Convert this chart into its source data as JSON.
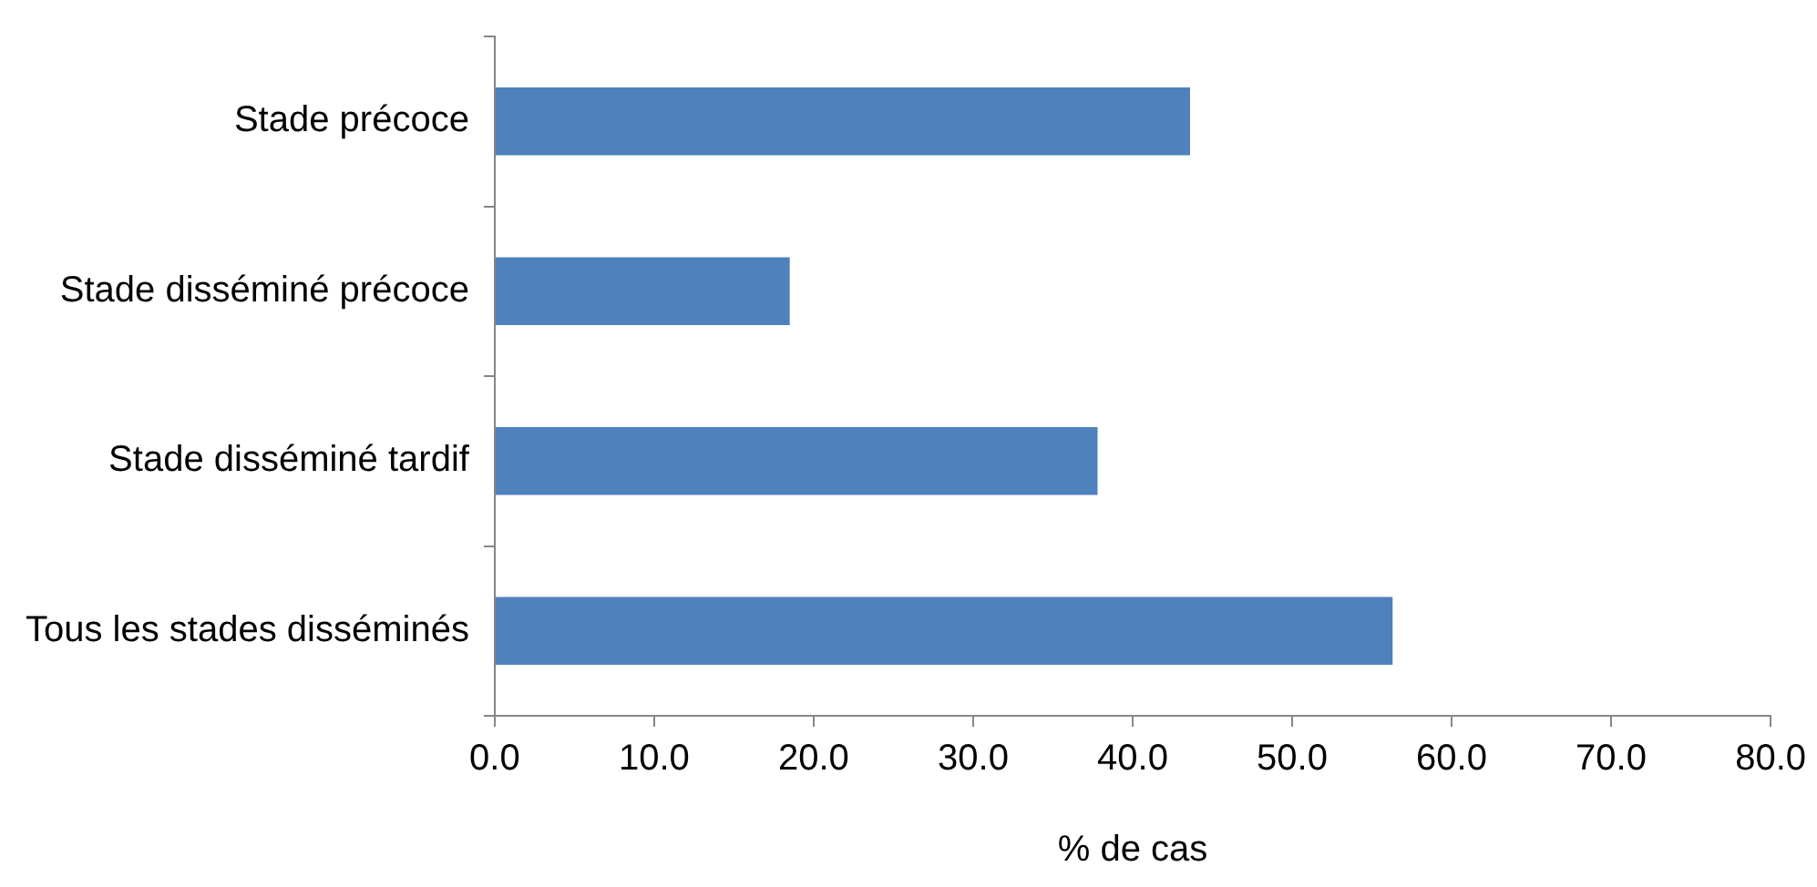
{
  "chart_data": {
    "type": "bar",
    "orientation": "horizontal",
    "xlabel": "% de cas",
    "categories": [
      "Stade précoce",
      "Stade disséminé précoce",
      "Stade disséminé tardif",
      "Tous les stades disséminés"
    ],
    "values": [
      43.6,
      18.5,
      37.8,
      56.3
    ],
    "color": "#4f81bd",
    "xlim": [
      0,
      80
    ],
    "xticks": [
      {
        "value": 0,
        "label": "0.0"
      },
      {
        "value": 10,
        "label": "10.0"
      },
      {
        "value": 20,
        "label": "20.0"
      },
      {
        "value": 30,
        "label": "30.0"
      },
      {
        "value": 40,
        "label": "40.0"
      },
      {
        "value": 50,
        "label": "50.0"
      },
      {
        "value": 60,
        "label": "60.0"
      },
      {
        "value": 70,
        "label": "70.0"
      },
      {
        "value": 80,
        "label": "80.0"
      }
    ],
    "grid": false,
    "legend": false
  }
}
